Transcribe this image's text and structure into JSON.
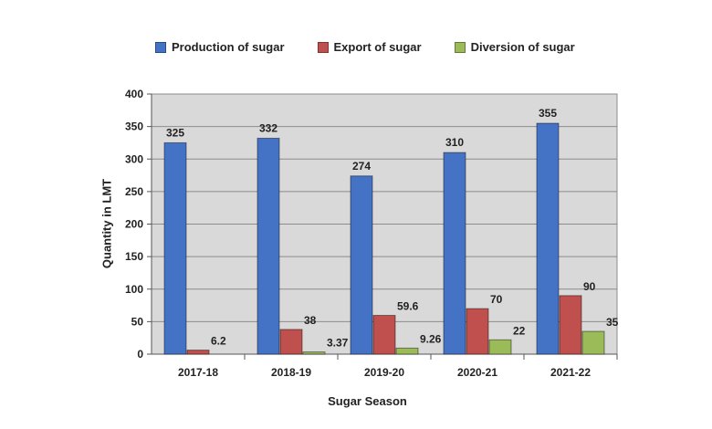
{
  "chart_data": {
    "type": "bar",
    "title": "",
    "xlabel": "Sugar Season",
    "ylabel": "Quantity in LMT",
    "categories": [
      "2017-18",
      "2018-19",
      "2019-20",
      "2020-21",
      "2021-22"
    ],
    "series": [
      {
        "name": "Production of sugar",
        "values": [
          325,
          332,
          274,
          310,
          355
        ],
        "labels": [
          "325",
          "332",
          "274",
          "310",
          "355"
        ],
        "color": "#4472C4"
      },
      {
        "name": "Export of sugar",
        "values": [
          6.2,
          38,
          59.6,
          70,
          90
        ],
        "labels": [
          "6.2",
          "38",
          "59.6",
          "70",
          "90"
        ],
        "color": "#C0504D"
      },
      {
        "name": "Diversion of sugar",
        "values": [
          null,
          3.37,
          9.26,
          22,
          35
        ],
        "labels": [
          "",
          "3.37",
          "9.26",
          "22",
          "35"
        ],
        "color": "#9BBB59"
      }
    ],
    "ylim": [
      0,
      400
    ],
    "yticks": [
      "0",
      "50",
      "100",
      "150",
      "200",
      "250",
      "300",
      "350",
      "400"
    ],
    "grid": true,
    "plot_background": "#D9D9D9",
    "legend_position": "top"
  }
}
